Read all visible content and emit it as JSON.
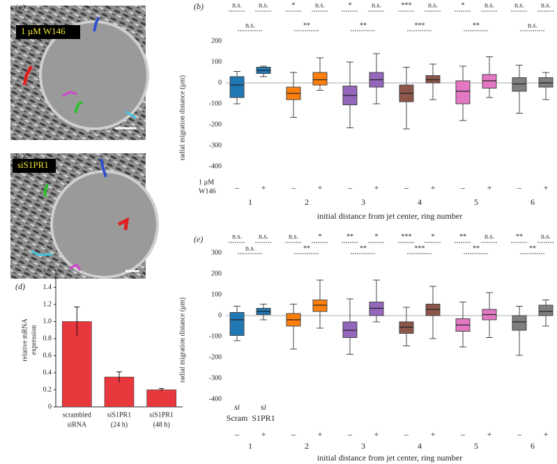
{
  "images": [
    {
      "label": "(a)",
      "caption": "1 µM W146"
    },
    {
      "label": "(c)",
      "caption": "siS1PR1"
    }
  ],
  "chart_data": [
    {
      "type": "box",
      "panel_label": "(b)",
      "y_label": "radial migration distance (µm)",
      "x_label": "initial distance from jet center, ring number",
      "ylim": [
        -430,
        230
      ],
      "yticks": [
        200,
        100,
        0,
        -100,
        -200,
        -300,
        -400
      ],
      "categories": [
        "1",
        "2",
        "3",
        "4",
        "5",
        "6"
      ],
      "conditions": [
        "–",
        "+"
      ],
      "condition_labels": [
        [
          "1 µM",
          "W146"
        ]
      ],
      "colors": [
        "#1f77b4",
        "#ff7f0e",
        "#9467bd",
        "#8c564b",
        "#e377c2",
        "#7f7f7f"
      ],
      "boxes": [
        {
          "low": -100,
          "q1": -70,
          "median": -10,
          "q3": 30,
          "high": 55
        },
        {
          "low": 30,
          "q1": 45,
          "median": 60,
          "q3": 75,
          "high": 80
        },
        {
          "low": -165,
          "q1": -80,
          "median": -50,
          "q3": -20,
          "high": 50
        },
        {
          "low": -35,
          "q1": -10,
          "median": 15,
          "q3": 50,
          "high": 120
        },
        {
          "low": -215,
          "q1": -105,
          "median": -60,
          "q3": -15,
          "high": 100
        },
        {
          "low": -100,
          "q1": -20,
          "median": 15,
          "q3": 50,
          "high": 140
        },
        {
          "low": -220,
          "q1": -90,
          "median": -50,
          "q3": -10,
          "high": 75
        },
        {
          "low": -80,
          "q1": 0,
          "median": 15,
          "q3": 35,
          "high": 90
        },
        {
          "low": -180,
          "q1": -100,
          "median": -40,
          "q3": 10,
          "high": 80
        },
        {
          "low": -70,
          "q1": -25,
          "median": 10,
          "q3": 40,
          "high": 125
        },
        {
          "low": -145,
          "q1": -40,
          "median": -5,
          "q3": 25,
          "high": 85
        },
        {
          "low": -80,
          "q1": -20,
          "median": 0,
          "q3": 25,
          "high": 50
        }
      ],
      "significance_each": [
        "n.s.",
        "n.s.",
        "*",
        "n.s.",
        "*",
        "n.s.",
        "***",
        "n.s.",
        "*",
        "n.s.",
        "n.s.",
        "n.s."
      ],
      "significance_pair": [
        "n.s.",
        "**",
        "**",
        "***",
        "**",
        "n.s."
      ]
    },
    {
      "type": "box",
      "panel_label": "(e)",
      "y_label": "radial migration distance (µm)",
      "x_label": "initial distance from jet center, ring number",
      "ylim": [
        -430,
        330
      ],
      "yticks": [
        300,
        200,
        100,
        0,
        -100,
        -200,
        -300,
        -400
      ],
      "categories": [
        "1",
        "2",
        "3",
        "4",
        "5",
        "6"
      ],
      "conditions": [
        "–",
        "+"
      ],
      "condition_labels": [
        [
          "si",
          "Scram"
        ],
        [
          "si",
          "S1PR1"
        ]
      ],
      "colors": [
        "#1f77b4",
        "#ff7f0e",
        "#9467bd",
        "#8c564b",
        "#e377c2",
        "#7f7f7f"
      ],
      "boxes": [
        {
          "low": -120,
          "q1": -95,
          "median": -20,
          "q3": 15,
          "high": 45
        },
        {
          "low": -20,
          "q1": 5,
          "median": 20,
          "q3": 35,
          "high": 55
        },
        {
          "low": -160,
          "q1": -50,
          "median": -20,
          "q3": 10,
          "high": 55
        },
        {
          "low": -60,
          "q1": 20,
          "median": 50,
          "q3": 75,
          "high": 170
        },
        {
          "low": -185,
          "q1": -105,
          "median": -70,
          "q3": -30,
          "high": 80
        },
        {
          "low": -30,
          "q1": 0,
          "median": 35,
          "q3": 65,
          "high": 170
        },
        {
          "low": -145,
          "q1": -85,
          "median": -55,
          "q3": -30,
          "high": 40
        },
        {
          "low": -110,
          "q1": 0,
          "median": 30,
          "q3": 55,
          "high": 140
        },
        {
          "low": -150,
          "q1": -75,
          "median": -45,
          "q3": -15,
          "high": 65
        },
        {
          "low": -105,
          "q1": -20,
          "median": 5,
          "q3": 30,
          "high": 110
        },
        {
          "low": -190,
          "q1": -70,
          "median": -30,
          "q3": 0,
          "high": 45
        },
        {
          "low": -50,
          "q1": 0,
          "median": 20,
          "q3": 50,
          "high": 75
        }
      ],
      "significance_each": [
        "n.s.",
        "n.s.",
        "n.s.",
        "*",
        "**",
        "*",
        "***",
        "*",
        "**",
        "n.s.",
        "**",
        "n.s."
      ],
      "significance_pair": [
        "n.s.",
        "**",
        "**",
        "***",
        "**",
        "**"
      ]
    },
    {
      "type": "bar",
      "panel_label": "(d)",
      "y_label": [
        "relative mRNA",
        "expression"
      ],
      "categories": [
        [
          "scrambled",
          "siRNA"
        ],
        [
          "siS1PR1",
          "(24 h)"
        ],
        [
          "siS1PR1",
          "(48 h)"
        ]
      ],
      "values": [
        1.0,
        0.35,
        0.2
      ],
      "errors": [
        0.17,
        0.06,
        0.015
      ],
      "color": "#e8383d",
      "ylim": [
        0,
        1.6
      ],
      "yticks": [
        0,
        0.2,
        0.4,
        0.6,
        0.8,
        {
          "value": 1,
          "label": "1.0"
        },
        1.2,
        1.4,
        1.6
      ]
    }
  ]
}
